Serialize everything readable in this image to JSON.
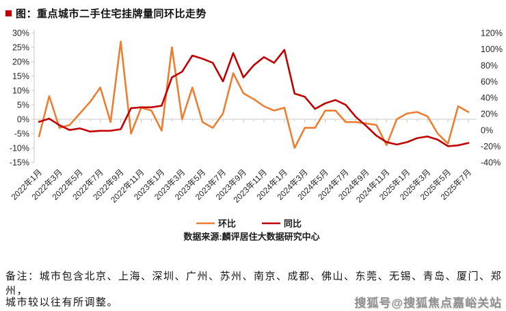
{
  "title": "图：重点城市二手住宅挂牌量同环比走势",
  "accent_color": "#c00000",
  "chart_data": {
    "type": "line",
    "title": "图：重点城市二手住宅挂牌量同环比走势",
    "x": [
      "2022年1月",
      "2022年2月",
      "2022年3月",
      "2022年4月",
      "2022年5月",
      "2022年6月",
      "2022年7月",
      "2022年8月",
      "2022年9月",
      "2022年10月",
      "2022年11月",
      "2022年12月",
      "2023年1月",
      "2023年2月",
      "2023年3月",
      "2023年4月",
      "2023年5月",
      "2023年6月",
      "2023年7月",
      "2023年8月",
      "2023年9月",
      "2023年10月",
      "2023年11月",
      "2023年12月",
      "2024年1月",
      "2024年2月",
      "2024年3月",
      "2024年4月",
      "2024年5月",
      "2024年6月",
      "2024年7月",
      "2024年8月",
      "2024年9月",
      "2024年10月",
      "2024年11月",
      "2024年12月",
      "2025年1月",
      "2025年2月",
      "2025年3月",
      "2025年4月",
      "2025年5月",
      "2025年6月",
      "2025年7月"
    ],
    "x_label_every": 2,
    "series": [
      {
        "name": "环比",
        "axis": "left",
        "color": "#ED7D31",
        "values": [
          -6,
          8,
          -3,
          -2,
          2,
          6,
          11,
          -1,
          27,
          -5,
          4,
          3,
          -4,
          25,
          0,
          11,
          -1,
          -3,
          2,
          16,
          9,
          7,
          4.5,
          3,
          4,
          -10,
          -3,
          -3,
          3,
          3,
          -1,
          -1,
          -1.5,
          -2,
          -9,
          0,
          2,
          2.5,
          1,
          -5,
          -8.5,
          4.5,
          2.5
        ]
      },
      {
        "name": "同比",
        "axis": "right",
        "color": "#C00000",
        "values": [
          10,
          14,
          6,
          0,
          2,
          -2,
          -1,
          -1,
          1,
          27,
          28,
          28,
          30,
          65,
          72,
          92,
          88,
          83,
          60,
          95,
          65,
          80,
          90,
          83,
          99,
          45,
          41,
          26,
          33,
          37,
          31,
          16,
          5,
          -7,
          -15,
          -18,
          -15,
          -10,
          -8,
          -12,
          -20,
          -19,
          -16
        ]
      }
    ],
    "left_axis": {
      "min": -15,
      "max": 30,
      "step": 5,
      "tick_labels": [
        "30%",
        "25%",
        "20%",
        "15%",
        "10%",
        "5%",
        "0%",
        "-5%",
        "-10%",
        "-15%"
      ]
    },
    "right_axis": {
      "min": -40,
      "max": 120,
      "step": 20,
      "tick_labels": [
        "120%",
        "100%",
        "80%",
        "60%",
        "40%",
        "20%",
        "0%",
        "-20%",
        "-40%"
      ]
    },
    "grid": "off",
    "legend_position": "bottom",
    "source": "数据来源:麟评居住大数据研究中心"
  },
  "note": {
    "line1": "备注：城市包含北京、上海、深圳、广州、苏州、南京、成都、佛山、东莞、无锡、青岛、厦门、郑州，",
    "line2": "城市较以往有所调整。"
  },
  "watermark": "搜狐号@搜狐焦点嘉峪关站"
}
